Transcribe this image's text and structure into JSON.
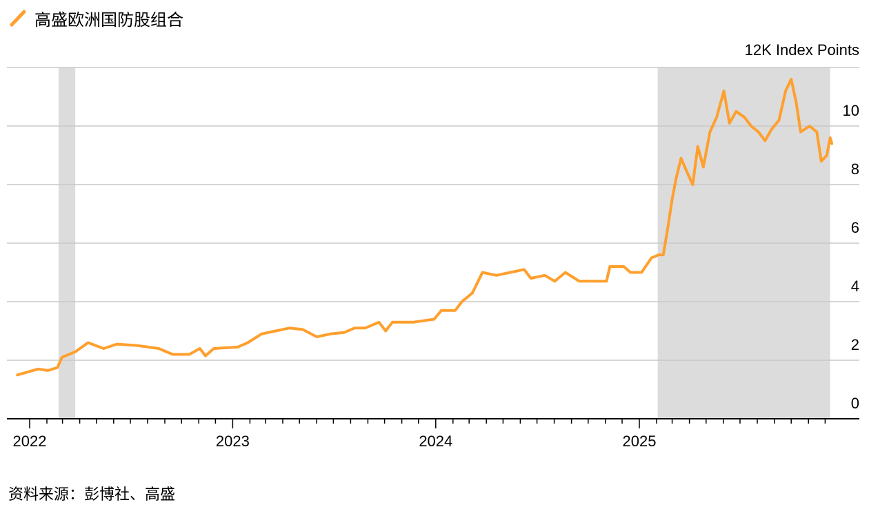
{
  "chart_data": {
    "type": "line",
    "title": "",
    "legend": [
      {
        "name": "高盛欧洲国防股组合",
        "color": "#FF9F2D",
        "icon": "slash-line-icon"
      }
    ],
    "legend_placement": "top-left",
    "unit_label": "12K Index Points",
    "yaxis": {
      "ticks": [
        "0",
        "2",
        "4",
        "6",
        "8",
        "10"
      ],
      "range": [
        0,
        12
      ],
      "position": "right",
      "grid": true
    },
    "xaxis": {
      "ticks": [
        "2022",
        "2023",
        "2024",
        "2025"
      ],
      "range": [
        "2021-12-01",
        "2025-12-31"
      ],
      "minor_ticks": "monthly"
    },
    "shaded_periods": [
      {
        "start": "2022-02-22",
        "end": "2022-03-24",
        "color": "#DCDCDC"
      },
      {
        "start": "2025-02-03",
        "end": "2025-12-10",
        "color": "#DCDCDC"
      }
    ],
    "series": [
      {
        "color": "#FF9F2D",
        "points": [
          [
            "2021-12-10",
            1.5
          ],
          [
            "2022-01-16",
            1.7
          ],
          [
            "2022-02-03",
            1.65
          ],
          [
            "2022-02-20",
            1.75
          ],
          [
            "2022-02-28",
            2.1
          ],
          [
            "2022-03-25",
            2.3
          ],
          [
            "2022-04-16",
            2.6
          ],
          [
            "2022-05-14",
            2.4
          ],
          [
            "2022-06-07",
            2.55
          ],
          [
            "2022-07-15",
            2.5
          ],
          [
            "2022-08-21",
            2.4
          ],
          [
            "2022-09-15",
            2.2
          ],
          [
            "2022-10-15",
            2.2
          ],
          [
            "2022-11-03",
            2.4
          ],
          [
            "2022-11-13",
            2.15
          ],
          [
            "2022-11-28",
            2.4
          ],
          [
            "2023-01-10",
            2.45
          ],
          [
            "2023-01-28",
            2.6
          ],
          [
            "2023-02-22",
            2.9
          ],
          [
            "2023-03-19",
            3.0
          ],
          [
            "2023-04-13",
            3.1
          ],
          [
            "2023-05-07",
            3.05
          ],
          [
            "2023-06-01",
            2.8
          ],
          [
            "2023-06-26",
            2.9
          ],
          [
            "2023-07-21",
            2.95
          ],
          [
            "2023-08-08",
            3.1
          ],
          [
            "2023-08-27",
            3.1
          ],
          [
            "2023-09-21",
            3.3
          ],
          [
            "2023-10-03",
            3.0
          ],
          [
            "2023-10-15",
            3.3
          ],
          [
            "2023-11-21",
            3.3
          ],
          [
            "2023-12-29",
            3.4
          ],
          [
            "2024-01-11",
            3.7
          ],
          [
            "2024-02-05",
            3.7
          ],
          [
            "2024-02-17",
            4.0
          ],
          [
            "2024-03-07",
            4.3
          ],
          [
            "2024-03-25",
            5.0
          ],
          [
            "2024-04-19",
            4.9
          ],
          [
            "2024-05-14",
            5.0
          ],
          [
            "2024-06-08",
            5.1
          ],
          [
            "2024-06-20",
            4.8
          ],
          [
            "2024-07-15",
            4.9
          ],
          [
            "2024-08-02",
            4.7
          ],
          [
            "2024-08-21",
            5.0
          ],
          [
            "2024-09-15",
            4.7
          ],
          [
            "2024-10-09",
            4.7
          ],
          [
            "2024-11-03",
            4.7
          ],
          [
            "2024-11-09",
            5.2
          ],
          [
            "2024-12-04",
            5.2
          ],
          [
            "2024-12-16",
            5.0
          ],
          [
            "2025-01-05",
            5.0
          ],
          [
            "2025-01-23",
            5.5
          ],
          [
            "2025-02-05",
            5.6
          ],
          [
            "2025-02-13",
            5.6
          ],
          [
            "2025-02-21",
            6.5
          ],
          [
            "2025-03-01",
            7.5
          ],
          [
            "2025-03-08",
            8.2
          ],
          [
            "2025-03-17",
            8.9
          ],
          [
            "2025-03-26",
            8.5
          ],
          [
            "2025-04-07",
            8.0
          ],
          [
            "2025-04-16",
            9.3
          ],
          [
            "2025-04-26",
            8.6
          ],
          [
            "2025-05-08",
            9.8
          ],
          [
            "2025-05-20",
            10.3
          ],
          [
            "2025-06-02",
            11.2
          ],
          [
            "2025-06-12",
            10.1
          ],
          [
            "2025-06-24",
            10.5
          ],
          [
            "2025-07-09",
            10.3
          ],
          [
            "2025-07-21",
            10.0
          ],
          [
            "2025-08-03",
            9.8
          ],
          [
            "2025-08-15",
            9.5
          ],
          [
            "2025-08-27",
            9.9
          ],
          [
            "2025-09-09",
            10.2
          ],
          [
            "2025-09-21",
            11.2
          ],
          [
            "2025-10-01",
            11.6
          ],
          [
            "2025-10-10",
            10.8
          ],
          [
            "2025-10-18",
            9.8
          ],
          [
            "2025-11-03",
            10.0
          ],
          [
            "2025-11-16",
            9.8
          ],
          [
            "2025-11-24",
            8.8
          ],
          [
            "2025-12-04",
            9.0
          ],
          [
            "2025-12-10",
            9.6
          ],
          [
            "2025-12-13",
            9.4
          ]
        ]
      }
    ]
  },
  "source": "资料来源：彭博社、高盛"
}
